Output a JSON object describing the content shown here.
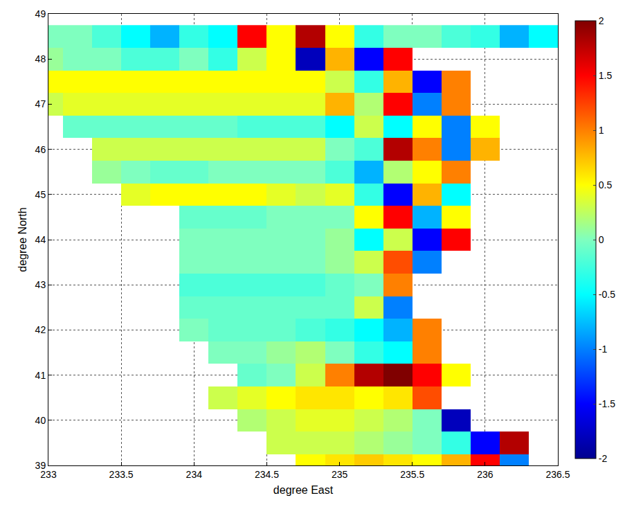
{
  "chart_data": {
    "type": "heatmap",
    "x_label": "degree East",
    "y_label": "degree North",
    "xlim": [
      233,
      236.5
    ],
    "ylim": [
      39,
      49
    ],
    "xticks": [
      233,
      233.5,
      234,
      234.5,
      235,
      235.5,
      236,
      236.5
    ],
    "yticks": [
      39,
      40,
      41,
      42,
      43,
      44,
      45,
      46,
      47,
      48,
      49
    ],
    "grid": true,
    "x": [
      233.0,
      233.2,
      233.4,
      233.6,
      233.8,
      234.0,
      234.2,
      234.4,
      234.6,
      234.8,
      235.0,
      235.2,
      235.4,
      235.6,
      235.8,
      236.0,
      236.2,
      236.4
    ],
    "y": [
      39,
      39.5,
      40,
      40.5,
      41,
      41.5,
      42,
      42.5,
      43,
      43.5,
      44,
      44.5,
      45,
      45.5,
      46,
      46.5,
      47,
      47.5,
      48,
      48.5
    ],
    "z": [
      [
        null,
        null,
        null,
        null,
        null,
        null,
        null,
        null,
        null,
        0.5,
        0.6,
        0.7,
        0.6,
        0.5,
        0.8,
        1.5,
        -1.0,
        null
      ],
      [
        null,
        null,
        null,
        null,
        null,
        null,
        null,
        null,
        0.3,
        0.3,
        0.3,
        0.2,
        0.1,
        0.0,
        -0.3,
        -1.5,
        1.8,
        null
      ],
      [
        null,
        null,
        null,
        null,
        null,
        null,
        null,
        0.2,
        0.3,
        0.4,
        0.4,
        0.3,
        0.2,
        0.0,
        -1.8,
        null,
        null,
        null
      ],
      [
        null,
        null,
        null,
        null,
        null,
        null,
        0.3,
        0.4,
        0.5,
        0.6,
        0.6,
        0.5,
        0.6,
        1.2,
        null,
        null,
        null,
        null
      ],
      [
        null,
        null,
        null,
        null,
        null,
        null,
        null,
        -0.1,
        0.0,
        0.3,
        1.0,
        1.8,
        2.0,
        1.5,
        0.5,
        null,
        null,
        null
      ],
      [
        null,
        null,
        null,
        null,
        null,
        null,
        0.0,
        0.0,
        0.1,
        0.2,
        0.0,
        -0.3,
        -0.5,
        1.0,
        null,
        null,
        null,
        null
      ],
      [
        null,
        null,
        null,
        null,
        null,
        0.0,
        -0.1,
        -0.1,
        -0.1,
        -0.2,
        -0.3,
        -0.5,
        -0.8,
        1.0,
        null,
        null,
        null,
        null
      ],
      [
        null,
        null,
        null,
        null,
        null,
        -0.1,
        -0.1,
        -0.1,
        -0.1,
        -0.1,
        -0.1,
        0.3,
        -1.0,
        null,
        null,
        null,
        null,
        null
      ],
      [
        null,
        null,
        null,
        null,
        null,
        -0.2,
        -0.2,
        -0.2,
        -0.2,
        -0.2,
        -0.1,
        0.0,
        1.0,
        null,
        null,
        null,
        null,
        null
      ],
      [
        null,
        null,
        null,
        null,
        null,
        0.0,
        0.0,
        0.0,
        0.0,
        0.0,
        0.1,
        0.3,
        1.2,
        -1.0,
        null,
        null,
        null,
        null
      ],
      [
        null,
        null,
        null,
        null,
        null,
        0.0,
        0.0,
        0.0,
        0.0,
        0.0,
        0.1,
        -0.5,
        0.3,
        -1.5,
        1.5,
        null,
        null,
        null
      ],
      [
        null,
        null,
        null,
        null,
        null,
        -0.1,
        -0.1,
        -0.1,
        0.0,
        0.0,
        0.0,
        0.5,
        1.5,
        -0.8,
        0.5,
        null,
        null,
        null
      ],
      [
        null,
        null,
        null,
        0.4,
        0.5,
        0.5,
        0.5,
        0.5,
        0.4,
        0.3,
        0.4,
        -0.3,
        -1.5,
        0.8,
        -0.5,
        null,
        null,
        null
      ],
      [
        null,
        null,
        0.1,
        0.0,
        -0.1,
        -0.1,
        0.0,
        0.0,
        0.0,
        0.0,
        -0.2,
        -0.8,
        0.2,
        0.5,
        1.0,
        null,
        null,
        null
      ],
      [
        null,
        null,
        0.3,
        0.3,
        0.3,
        0.3,
        0.3,
        0.3,
        0.3,
        0.3,
        0.0,
        -0.2,
        1.8,
        1.0,
        -1.0,
        0.8,
        null,
        null
      ],
      [
        null,
        -0.1,
        -0.1,
        -0.1,
        -0.1,
        -0.1,
        -0.1,
        -0.2,
        -0.2,
        -0.2,
        -0.5,
        0.3,
        -0.5,
        0.5,
        -1.0,
        0.5,
        null,
        null
      ],
      [
        0.3,
        0.4,
        0.4,
        0.4,
        0.4,
        0.4,
        0.4,
        0.4,
        0.4,
        0.4,
        0.8,
        0.2,
        1.5,
        -1.0,
        1.0,
        null,
        null,
        null
      ],
      [
        0.5,
        0.5,
        0.5,
        0.5,
        0.5,
        0.5,
        0.5,
        0.5,
        0.5,
        0.5,
        0.3,
        -0.3,
        0.8,
        -1.5,
        1.0,
        null,
        null,
        null
      ],
      [
        0.1,
        0.0,
        0.0,
        -0.2,
        -0.2,
        0.0,
        -0.3,
        0.3,
        0.5,
        -1.8,
        0.8,
        -1.5,
        1.5,
        null,
        null,
        null,
        null,
        null
      ],
      [
        0.0,
        0.0,
        -0.2,
        -0.5,
        -0.8,
        -0.3,
        -0.5,
        1.5,
        0.5,
        1.8,
        0.5,
        -0.3,
        0.0,
        0.0,
        -0.2,
        -0.3,
        -0.8,
        -0.5
      ]
    ],
    "colorbar_range": [
      -2,
      2
    ],
    "colorbar_ticks": [
      -2,
      -1.5,
      -1,
      -0.5,
      0,
      0.5,
      1,
      1.5,
      2
    ]
  }
}
